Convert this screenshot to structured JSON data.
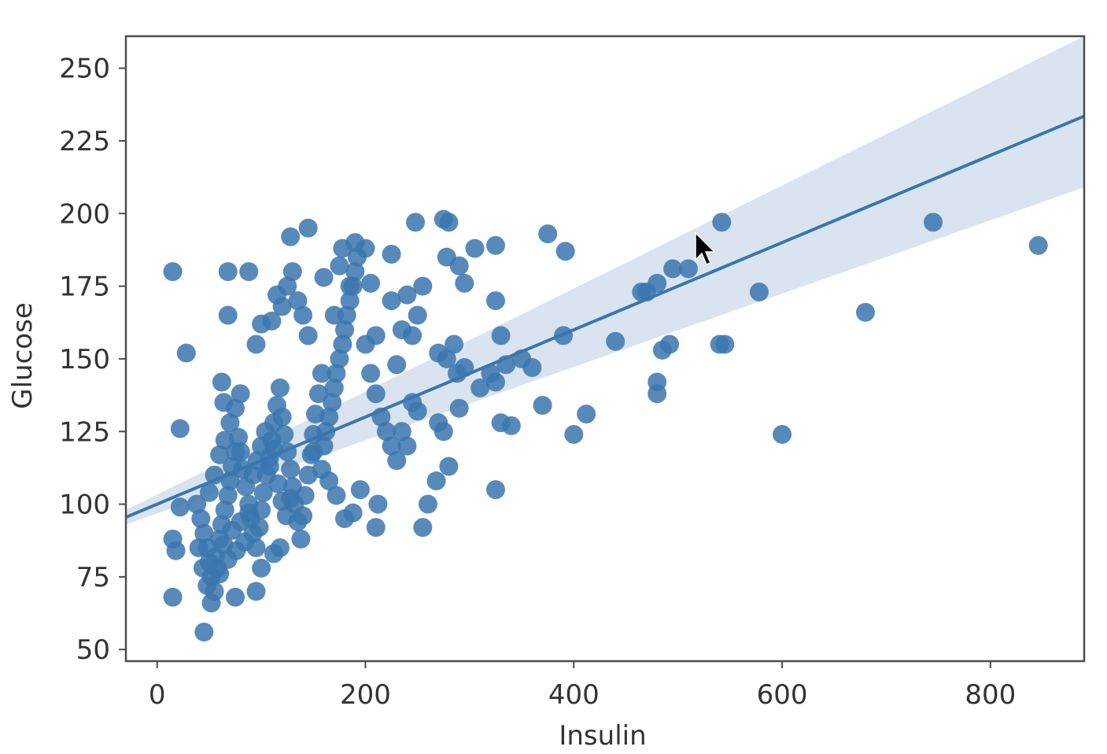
{
  "chart_data": {
    "type": "scatter",
    "title": "",
    "xlabel": "Insulin",
    "ylabel": "Glucose",
    "xlim": [
      -30,
      890
    ],
    "ylim": [
      46,
      261
    ],
    "xticks": [
      0,
      200,
      400,
      600,
      800
    ],
    "yticks": [
      50,
      75,
      100,
      125,
      150,
      175,
      200,
      225,
      250
    ],
    "grid": false,
    "legend": "none",
    "colors": {
      "points": "#3a75ae",
      "regression_line": "#3a75ae",
      "confidence_band": "#c9d9ea",
      "axes": "#4d4d4d"
    },
    "regression": {
      "x": [
        -30,
        890
      ],
      "y": [
        95.5,
        233.5
      ],
      "ci_lower": [
        93.0,
        209.0
      ],
      "ci_upper": [
        98.0,
        261.0
      ]
    },
    "series": [
      {
        "points": [
          [
            15,
            180
          ],
          [
            28,
            152
          ],
          [
            22,
            126
          ],
          [
            15,
            88
          ],
          [
            18,
            84
          ],
          [
            22,
            99
          ],
          [
            15,
            68
          ],
          [
            45,
            56
          ],
          [
            38,
            100
          ],
          [
            42,
            95
          ],
          [
            45,
            90
          ],
          [
            48,
            85
          ],
          [
            50,
            80
          ],
          [
            52,
            75
          ],
          [
            55,
            70
          ],
          [
            58,
            78
          ],
          [
            60,
            88
          ],
          [
            62,
            93
          ],
          [
            65,
            98
          ],
          [
            68,
            103
          ],
          [
            70,
            108
          ],
          [
            72,
            113
          ],
          [
            75,
            118
          ],
          [
            78,
            123
          ],
          [
            80,
            118
          ],
          [
            82,
            112
          ],
          [
            85,
            106
          ],
          [
            88,
            100
          ],
          [
            90,
            95
          ],
          [
            92,
            90
          ],
          [
            95,
            85
          ],
          [
            98,
            92
          ],
          [
            100,
            98
          ],
          [
            102,
            104
          ],
          [
            105,
            110
          ],
          [
            108,
            116
          ],
          [
            110,
            122
          ],
          [
            112,
            128
          ],
          [
            115,
            134
          ],
          [
            118,
            140
          ],
          [
            120,
            130
          ],
          [
            122,
            124
          ],
          [
            125,
            118
          ],
          [
            128,
            112
          ],
          [
            130,
            106
          ],
          [
            132,
            100
          ],
          [
            135,
            94
          ],
          [
            138,
            88
          ],
          [
            140,
            96
          ],
          [
            142,
            103
          ],
          [
            145,
            110
          ],
          [
            148,
            117
          ],
          [
            150,
            124
          ],
          [
            152,
            131
          ],
          [
            155,
            138
          ],
          [
            158,
            145
          ],
          [
            160,
            120
          ],
          [
            162,
            125
          ],
          [
            165,
            130
          ],
          [
            168,
            135
          ],
          [
            170,
            140
          ],
          [
            172,
            145
          ],
          [
            175,
            150
          ],
          [
            178,
            155
          ],
          [
            180,
            160
          ],
          [
            182,
            165
          ],
          [
            185,
            170
          ],
          [
            188,
            175
          ],
          [
            190,
            180
          ],
          [
            192,
            185
          ],
          [
            40,
            85
          ],
          [
            44,
            78
          ],
          [
            48,
            72
          ],
          [
            52,
            66
          ],
          [
            56,
            82
          ],
          [
            60,
            76
          ],
          [
            64,
            86
          ],
          [
            68,
            81
          ],
          [
            72,
            91
          ],
          [
            76,
            84
          ],
          [
            80,
            94
          ],
          [
            84,
            87
          ],
          [
            88,
            97
          ],
          [
            92,
            110
          ],
          [
            96,
            115
          ],
          [
            100,
            120
          ],
          [
            104,
            125
          ],
          [
            108,
            113
          ],
          [
            112,
            119
          ],
          [
            116,
            107
          ],
          [
            120,
            101
          ],
          [
            124,
            96
          ],
          [
            128,
            102
          ],
          [
            50,
            104
          ],
          [
            55,
            110
          ],
          [
            60,
            117
          ],
          [
            65,
            122
          ],
          [
            70,
            128
          ],
          [
            75,
            133
          ],
          [
            80,
            138
          ],
          [
            62,
            142
          ],
          [
            64,
            135
          ],
          [
            68,
            180
          ],
          [
            88,
            180
          ],
          [
            68,
            165
          ],
          [
            95,
            155
          ],
          [
            100,
            162
          ],
          [
            110,
            163
          ],
          [
            115,
            172
          ],
          [
            120,
            168
          ],
          [
            125,
            175
          ],
          [
            130,
            180
          ],
          [
            135,
            170
          ],
          [
            140,
            165
          ],
          [
            145,
            158
          ],
          [
            128,
            192
          ],
          [
            145,
            195
          ],
          [
            160,
            178
          ],
          [
            170,
            165
          ],
          [
            175,
            182
          ],
          [
            178,
            188
          ],
          [
            185,
            175
          ],
          [
            190,
            190
          ],
          [
            200,
            188
          ],
          [
            205,
            176
          ],
          [
            225,
            186
          ],
          [
            200,
            155
          ],
          [
            205,
            145
          ],
          [
            210,
            138
          ],
          [
            215,
            130
          ],
          [
            220,
            125
          ],
          [
            225,
            120
          ],
          [
            230,
            115
          ],
          [
            235,
            125
          ],
          [
            240,
            120
          ],
          [
            245,
            135
          ],
          [
            250,
            132
          ],
          [
            210,
            158
          ],
          [
            225,
            170
          ],
          [
            230,
            148
          ],
          [
            235,
            160
          ],
          [
            240,
            172
          ],
          [
            245,
            158
          ],
          [
            250,
            165
          ],
          [
            255,
            175
          ],
          [
            248,
            197
          ],
          [
            275,
            198
          ],
          [
            280,
            197
          ],
          [
            278,
            185
          ],
          [
            290,
            182
          ],
          [
            305,
            188
          ],
          [
            325,
            189
          ],
          [
            295,
            176
          ],
          [
            270,
            152
          ],
          [
            278,
            150
          ],
          [
            285,
            155
          ],
          [
            288,
            145
          ],
          [
            295,
            147
          ],
          [
            310,
            140
          ],
          [
            320,
            145
          ],
          [
            325,
            170
          ],
          [
            330,
            158
          ],
          [
            325,
            142
          ],
          [
            335,
            148
          ],
          [
            270,
            128
          ],
          [
            275,
            125
          ],
          [
            290,
            133
          ],
          [
            330,
            128
          ],
          [
            340,
            127
          ],
          [
            350,
            150
          ],
          [
            360,
            147
          ],
          [
            370,
            134
          ],
          [
            390,
            158
          ],
          [
            400,
            124
          ],
          [
            412,
            131
          ],
          [
            440,
            156
          ],
          [
            260,
            100
          ],
          [
            268,
            108
          ],
          [
            280,
            113
          ],
          [
            325,
            105
          ],
          [
            255,
            92
          ],
          [
            210,
            92
          ],
          [
            212,
            100
          ],
          [
            195,
            105
          ],
          [
            188,
            97
          ],
          [
            180,
            95
          ],
          [
            172,
            103
          ],
          [
            165,
            108
          ],
          [
            158,
            112
          ],
          [
            150,
            118
          ],
          [
            95,
            70
          ],
          [
            75,
            68
          ],
          [
            100,
            78
          ],
          [
            112,
            83
          ],
          [
            118,
            85
          ],
          [
            375,
            193
          ],
          [
            392,
            187
          ],
          [
            542,
            197
          ],
          [
            465,
            173
          ],
          [
            480,
            176
          ],
          [
            470,
            173
          ],
          [
            495,
            181
          ],
          [
            510,
            181
          ],
          [
            485,
            153
          ],
          [
            492,
            155
          ],
          [
            540,
            155
          ],
          [
            545,
            155
          ],
          [
            480,
            142
          ],
          [
            480,
            138
          ],
          [
            578,
            173
          ],
          [
            600,
            124
          ],
          [
            680,
            166
          ],
          [
            745,
            197
          ],
          [
            846,
            189
          ]
        ]
      }
    ]
  }
}
